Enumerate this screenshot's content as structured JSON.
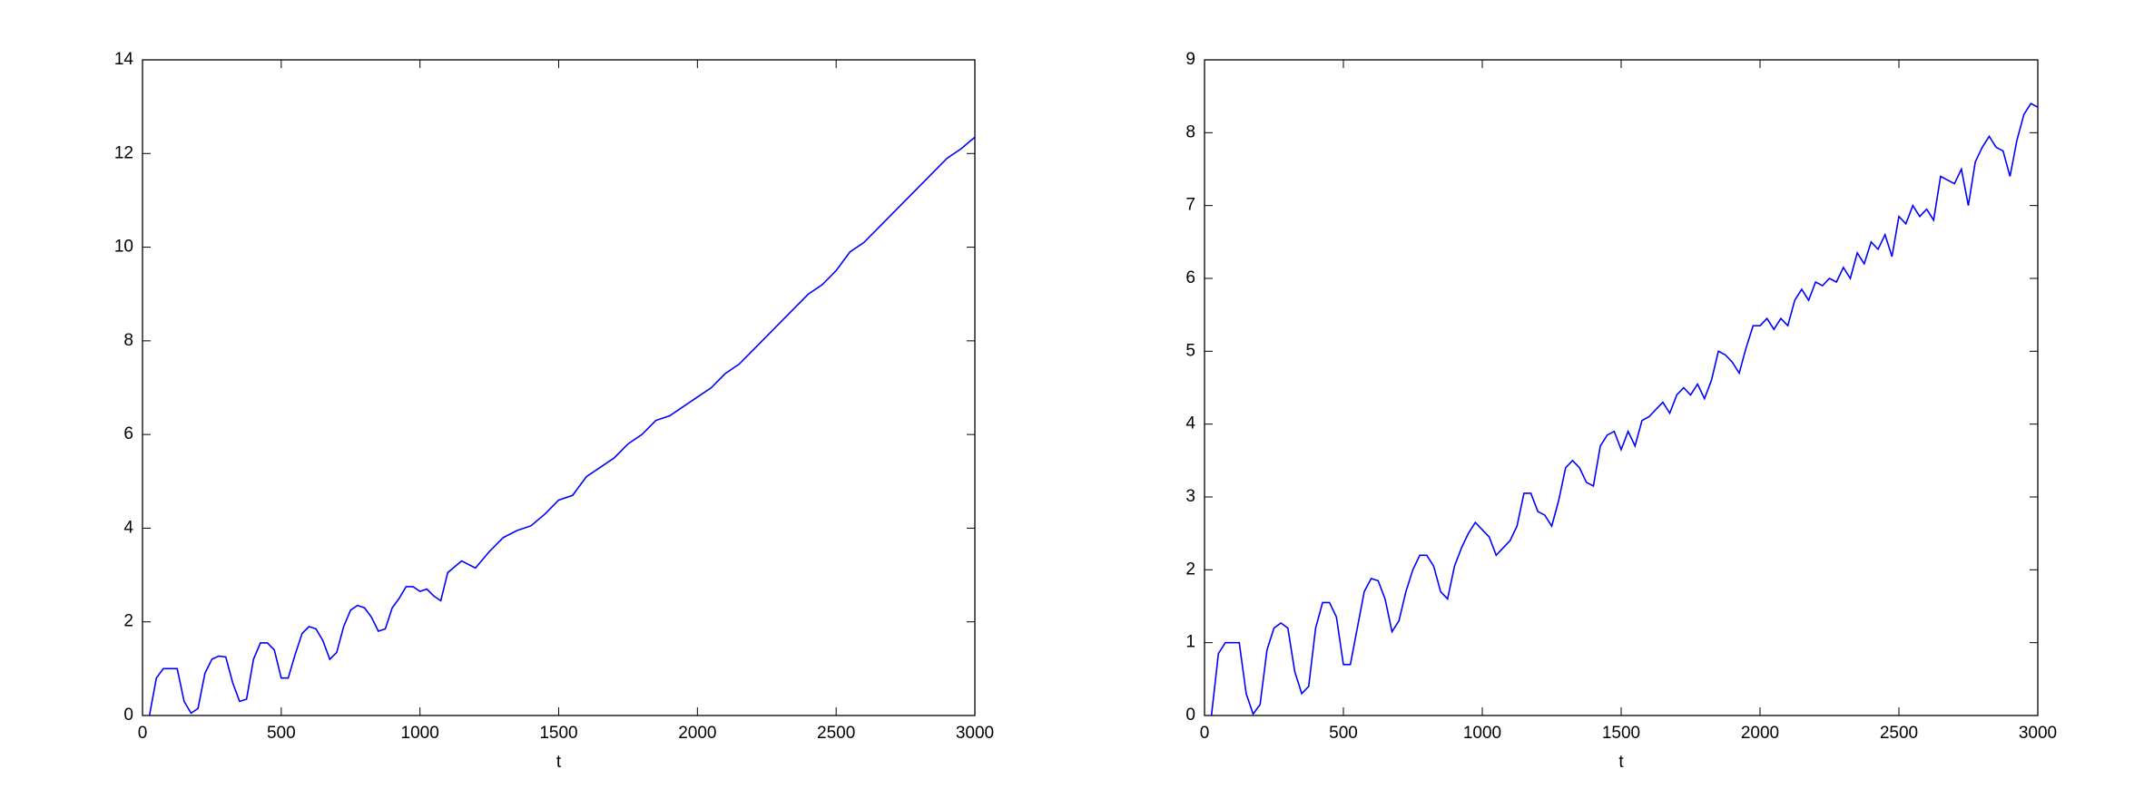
{
  "chart_data": [
    {
      "type": "line",
      "xlabel": "t",
      "xlim": [
        0,
        3000
      ],
      "ylim": [
        0,
        14
      ],
      "xticks": [
        0,
        500,
        1000,
        1500,
        2000,
        2500,
        3000
      ],
      "yticks": [
        0,
        2,
        4,
        6,
        8,
        10,
        12,
        14
      ],
      "x": [
        25,
        50,
        75,
        100,
        125,
        150,
        175,
        200,
        225,
        250,
        275,
        300,
        325,
        350,
        375,
        400,
        425,
        450,
        475,
        500,
        525,
        550,
        575,
        600,
        625,
        650,
        675,
        700,
        725,
        750,
        775,
        800,
        825,
        850,
        875,
        900,
        925,
        950,
        975,
        1000,
        1025,
        1050,
        1075,
        1100,
        1150,
        1200,
        1250,
        1300,
        1350,
        1400,
        1450,
        1500,
        1550,
        1600,
        1650,
        1700,
        1750,
        1800,
        1850,
        1900,
        1950,
        2000,
        2050,
        2100,
        2150,
        2200,
        2250,
        2300,
        2350,
        2400,
        2450,
        2500,
        2550,
        2600,
        2650,
        2700,
        2750,
        2800,
        2850,
        2900,
        2950,
        3000
      ],
      "series": [
        {
          "color": "#0000ff",
          "values": [
            0,
            0.8,
            1.0,
            1.0,
            1.0,
            0.3,
            0.05,
            0.15,
            0.9,
            1.2,
            1.27,
            1.25,
            0.7,
            0.3,
            0.35,
            1.2,
            1.55,
            1.55,
            1.4,
            0.8,
            0.8,
            1.3,
            1.75,
            1.9,
            1.85,
            1.6,
            1.2,
            1.35,
            1.9,
            2.25,
            2.35,
            2.3,
            2.1,
            1.8,
            1.85,
            2.3,
            2.5,
            2.75,
            2.75,
            2.65,
            2.7,
            2.55,
            2.45,
            3.05,
            3.3,
            3.15,
            3.5,
            3.8,
            3.95,
            4.05,
            4.3,
            4.6,
            4.7,
            5.1,
            5.3,
            5.5,
            5.8,
            6.0,
            6.3,
            6.4,
            6.6,
            6.8,
            7.0,
            7.3,
            7.5,
            7.8,
            8.1,
            8.4,
            8.7,
            9.0,
            9.2,
            9.5,
            9.9,
            10.1,
            10.4,
            10.7,
            11.0,
            11.3,
            11.6,
            11.9,
            12.1,
            12.35
          ]
        }
      ]
    },
    {
      "type": "line",
      "xlabel": "t",
      "xlim": [
        0,
        3000
      ],
      "ylim": [
        0,
        9
      ],
      "xticks": [
        0,
        500,
        1000,
        1500,
        2000,
        2500,
        3000
      ],
      "yticks": [
        0,
        1,
        2,
        3,
        4,
        5,
        6,
        7,
        8,
        9
      ],
      "x": [
        25,
        50,
        75,
        100,
        125,
        150,
        175,
        200,
        225,
        250,
        275,
        300,
        325,
        350,
        375,
        400,
        425,
        450,
        475,
        500,
        525,
        550,
        575,
        600,
        625,
        650,
        675,
        700,
        725,
        750,
        775,
        800,
        825,
        850,
        875,
        900,
        925,
        950,
        975,
        1000,
        1025,
        1050,
        1075,
        1100,
        1125,
        1150,
        1175,
        1200,
        1225,
        1250,
        1275,
        1300,
        1325,
        1350,
        1375,
        1400,
        1425,
        1450,
        1475,
        1500,
        1525,
        1550,
        1575,
        1600,
        1625,
        1650,
        1675,
        1700,
        1725,
        1750,
        1775,
        1800,
        1825,
        1850,
        1875,
        1900,
        1925,
        1950,
        1975,
        2000,
        2025,
        2050,
        2075,
        2100,
        2125,
        2150,
        2175,
        2200,
        2225,
        2250,
        2275,
        2300,
        2325,
        2350,
        2375,
        2400,
        2425,
        2450,
        2475,
        2500,
        2525,
        2550,
        2575,
        2600,
        2625,
        2650,
        2675,
        2700,
        2725,
        2750,
        2775,
        2800,
        2825,
        2850,
        2875,
        2900,
        2925,
        2950,
        2975,
        3000
      ],
      "series": [
        {
          "color": "#0000ff",
          "values": [
            0,
            0.85,
            1.0,
            1.0,
            1.0,
            0.3,
            0.02,
            0.15,
            0.9,
            1.2,
            1.27,
            1.2,
            0.6,
            0.3,
            0.4,
            1.2,
            1.55,
            1.55,
            1.35,
            0.7,
            0.7,
            1.2,
            1.7,
            1.88,
            1.85,
            1.6,
            1.15,
            1.3,
            1.7,
            2.0,
            2.2,
            2.2,
            2.05,
            1.7,
            1.6,
            2.05,
            2.3,
            2.5,
            2.65,
            2.55,
            2.45,
            2.2,
            2.3,
            2.4,
            2.6,
            3.05,
            3.05,
            2.8,
            2.75,
            2.6,
            2.95,
            3.4,
            3.5,
            3.4,
            3.2,
            3.15,
            3.7,
            3.85,
            3.9,
            3.65,
            3.9,
            3.7,
            4.05,
            4.1,
            4.2,
            4.3,
            4.15,
            4.4,
            4.5,
            4.4,
            4.55,
            4.35,
            4.6,
            5.0,
            4.95,
            4.85,
            4.7,
            5.05,
            5.35,
            5.35,
            5.45,
            5.3,
            5.45,
            5.35,
            5.7,
            5.85,
            5.7,
            5.95,
            5.9,
            6.0,
            5.95,
            6.15,
            6.0,
            6.35,
            6.2,
            6.5,
            6.4,
            6.6,
            6.3,
            6.85,
            6.75,
            7.0,
            6.85,
            6.95,
            6.8,
            7.4,
            7.35,
            7.3,
            7.5,
            7.0,
            7.6,
            7.8,
            7.95,
            7.8,
            7.75,
            7.4,
            7.9,
            8.25,
            8.4,
            8.35
          ]
        }
      ]
    }
  ]
}
